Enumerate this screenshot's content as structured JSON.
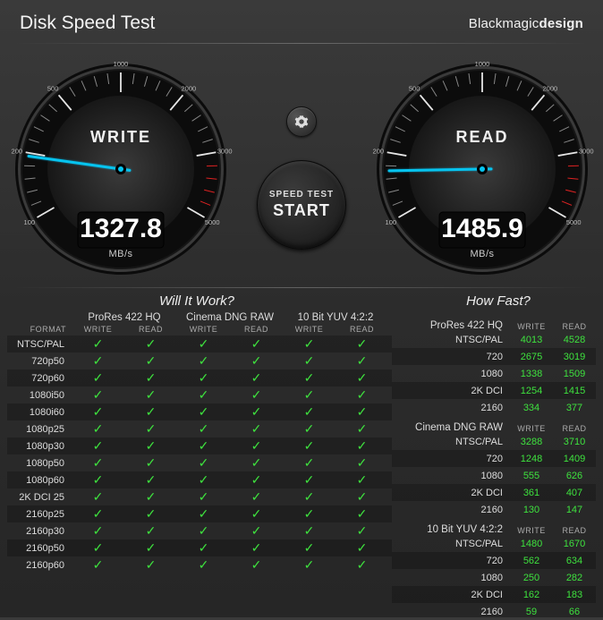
{
  "header": {
    "title": "Disk Speed Test",
    "brand_prefix": "Blackmagic",
    "brand_suffix": "design"
  },
  "settings_icon": "gear-icon",
  "start_button": {
    "top": "SPEED TEST",
    "bottom": "START"
  },
  "gauges": {
    "write": {
      "label": "WRITE",
      "value": "1327.8",
      "unit": "MB/s",
      "angle": -8
    },
    "read": {
      "label": "READ",
      "value": "1485.9",
      "unit": "MB/s",
      "angle": 1
    },
    "tick_values": [
      "100",
      "200",
      "500",
      "1000",
      "2000",
      "3000",
      "5000"
    ]
  },
  "will_title": "Will It Work?",
  "fast_title": "How Fast?",
  "will": {
    "format_label": "FORMAT",
    "sub_write": "WRITE",
    "sub_read": "READ",
    "groups": [
      "ProRes 422 HQ",
      "Cinema DNG RAW",
      "10 Bit YUV 4:2:2"
    ],
    "formats": [
      "NTSC/PAL",
      "720p50",
      "720p60",
      "1080i50",
      "1080i60",
      "1080p25",
      "1080p30",
      "1080p50",
      "1080p60",
      "2K DCI 25",
      "2160p25",
      "2160p30",
      "2160p50",
      "2160p60"
    ]
  },
  "fast": {
    "sub_write": "WRITE",
    "sub_read": "READ",
    "blocks": [
      {
        "name": "ProRes 422 HQ",
        "rows": [
          {
            "fmt": "NTSC/PAL",
            "w": "4013",
            "wc": "green",
            "r": "4528",
            "rc": "green"
          },
          {
            "fmt": "720",
            "w": "2675",
            "wc": "green",
            "r": "3019",
            "rc": "green"
          },
          {
            "fmt": "1080",
            "w": "1338",
            "wc": "green",
            "r": "1509",
            "rc": "green"
          },
          {
            "fmt": "2K DCI",
            "w": "1254",
            "wc": "green",
            "r": "1415",
            "rc": "green"
          },
          {
            "fmt": "2160",
            "w": "334",
            "wc": "green",
            "r": "377",
            "rc": "green"
          }
        ]
      },
      {
        "name": "Cinema DNG RAW",
        "rows": [
          {
            "fmt": "NTSC/PAL",
            "w": "3288",
            "wc": "green",
            "r": "3710",
            "rc": "green"
          },
          {
            "fmt": "720",
            "w": "1248",
            "wc": "green",
            "r": "1409",
            "rc": "green"
          },
          {
            "fmt": "1080",
            "w": "555",
            "wc": "green",
            "r": "626",
            "rc": "green"
          },
          {
            "fmt": "2K DCI",
            "w": "361",
            "wc": "green",
            "r": "407",
            "rc": "green"
          },
          {
            "fmt": "2160",
            "w": "130",
            "wc": "green",
            "r": "147",
            "rc": "green"
          }
        ]
      },
      {
        "name": "10 Bit YUV 4:2:2",
        "rows": [
          {
            "fmt": "NTSC/PAL",
            "w": "1480",
            "wc": "green",
            "r": "1670",
            "rc": "green"
          },
          {
            "fmt": "720",
            "w": "562",
            "wc": "green",
            "r": "634",
            "rc": "green"
          },
          {
            "fmt": "1080",
            "w": "250",
            "wc": "green",
            "r": "282",
            "rc": "green"
          },
          {
            "fmt": "2K DCI",
            "w": "162",
            "wc": "green",
            "r": "183",
            "rc": "green"
          },
          {
            "fmt": "2160",
            "w": "59",
            "wc": "green",
            "r": "66",
            "rc": "green"
          }
        ]
      }
    ]
  },
  "colors": {
    "green": "#3ee23e",
    "orange": "#ff8c1a",
    "red": "#ff3333",
    "needle": "#06c4ef",
    "bg_dark": "#262626"
  }
}
